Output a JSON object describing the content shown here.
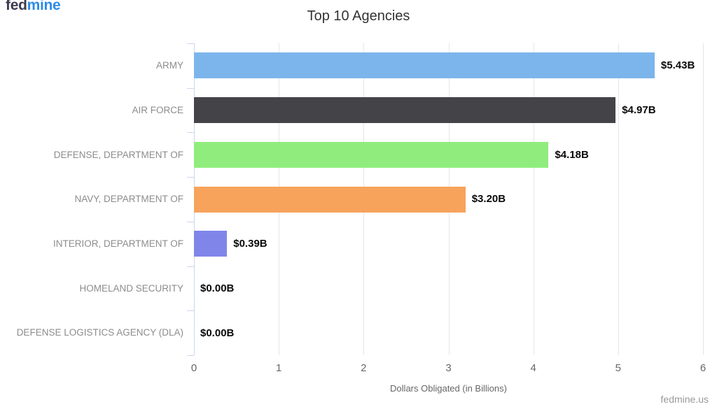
{
  "brand": {
    "logo_fed": "fed",
    "logo_mine": "mine",
    "footer": "fedmine.us"
  },
  "chart_data": {
    "type": "bar",
    "orientation": "horizontal",
    "title": "Top 10 Agencies",
    "xlabel": "Dollars Obligated (in Billions)",
    "categories": [
      "ARMY",
      "AIR FORCE",
      "DEFENSE, DEPARTMENT OF",
      "NAVY, DEPARTMENT OF",
      "INTERIOR, DEPARTMENT OF",
      "HOMELAND SECURITY",
      "DEFENSE LOGISTICS AGENCY (DLA)"
    ],
    "values": [
      5.43,
      4.97,
      4.18,
      3.2,
      0.39,
      0.0,
      0.0
    ],
    "value_labels": [
      "$5.43B",
      "$4.97B",
      "$4.18B",
      "$3.20B",
      "$0.39B",
      "$0.00B",
      "$0.00B"
    ],
    "bar_colors": [
      "#7cb5ec",
      "#434348",
      "#90ed7d",
      "#f7a35c",
      "#8085e9",
      null,
      null
    ],
    "xlim": [
      0,
      6
    ],
    "xticks": [
      0,
      1,
      2,
      3,
      4,
      5,
      6
    ],
    "grid": true,
    "legend": false,
    "colors": {
      "gridline": "#e6e6e6",
      "axis_line": "#ccd6eb",
      "title_text": "#333333",
      "category_text": "#8c8c8c",
      "tick_text": "#666666",
      "value_text": "#0a0a0a"
    }
  }
}
